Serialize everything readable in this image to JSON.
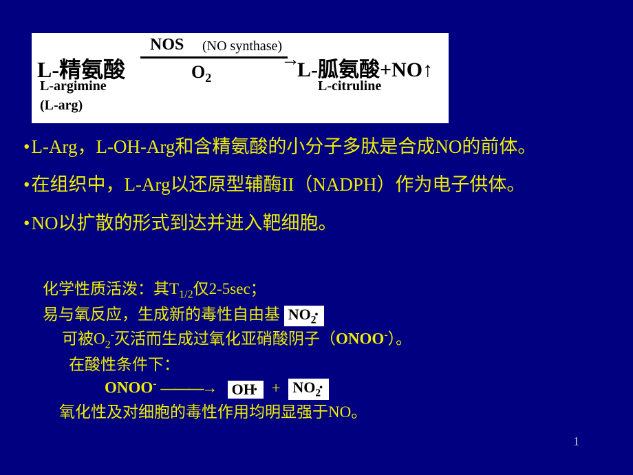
{
  "reaction": {
    "reactant_cn": "L-精氨酸",
    "reactant_en": "L-argimine",
    "reactant_abbr": "(L-arg)",
    "enzyme": "NOS",
    "enzyme_note": "(NO synthase)",
    "substrate": "O",
    "substrate_sub": "2",
    "product_cn": "L-胍氨酸+NO↑",
    "product_en": "L-citruline"
  },
  "bullets": {
    "b1": "L-Arg，L-OH-Arg和含精氨酸的小分子多肽是合成NO的前体。",
    "b2": "在组织中，L-Arg以还原型辅酶II（NADPH）作为电子供体。",
    "b3": "NO以扩散的形式到达并进入靶细胞。"
  },
  "section2": {
    "l1_a": "化学性质活泼：其T",
    "l1_sub": "1/2",
    "l1_b": "仅2-5sec；",
    "l2": "易与氧反应，生成新的毒性自由基",
    "no2_label": "NO",
    "no2_sub": "2",
    "l3_a": "可被O",
    "l3_sub": "2",
    "l3_sup": "-",
    "l3_b": "灭活而生成过氧化亚硝酸阴子（",
    "onoo": "ONOO",
    "onoo_sup": "-",
    "l3_c": "）。",
    "l4": "在酸性条件下：",
    "l5_onoo": "ONOO",
    "l5_sup": "-",
    "arrow": "———→",
    "oh": "OH",
    "plus": "+",
    "no2b": "NO",
    "no2b_sub": "2",
    "l6": "氧化性及对细胞的毒性作用均明显强于NO。"
  },
  "page_number": "1",
  "colors": {
    "background": "#000080",
    "text": "#eeee00",
    "box_bg": "#ffffff",
    "box_text": "#000000"
  }
}
